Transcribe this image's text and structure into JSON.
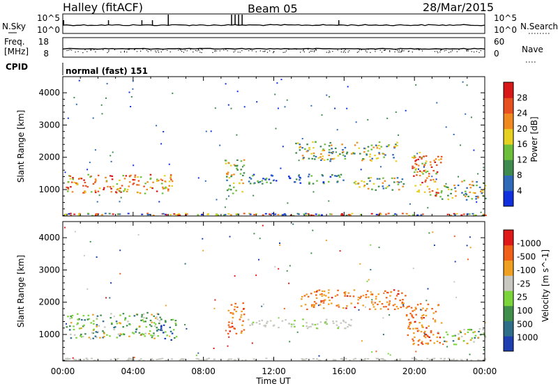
{
  "header": {
    "station": "Halley (fitACF)",
    "beam": "Beam 05",
    "date": "28/Mar/2015"
  },
  "status_panels": {
    "noise": {
      "left_label": "N.Sky",
      "right_label": "N.Search",
      "left_ticks": [
        "10^5",
        "10^0"
      ],
      "right_ticks": [
        "10^5",
        "10^0"
      ]
    },
    "freq": {
      "left_label_1": "Freq.",
      "left_label_2": "[MHz]",
      "right_label": "Nave",
      "left_ticks": [
        "18",
        "8"
      ],
      "right_ticks": [
        "60",
        "0"
      ]
    },
    "cpid": {
      "label": "CPID",
      "value": "normal (fast) 151"
    }
  },
  "chart_data": [
    {
      "type": "heatmap",
      "title": "",
      "ylabel": "Slant Range [km]",
      "xlabel": "",
      "x_range_hours": [
        0,
        24
      ],
      "ylim": [
        180,
        4500
      ],
      "y_ticks": [
        "1000",
        "2000",
        "3000",
        "4000"
      ],
      "colorbar": {
        "label": "Power [dB]",
        "ticks": [
          "4",
          "8",
          "12",
          "16",
          "20",
          "24",
          "28"
        ],
        "colors": [
          "#1030e0",
          "#2f6ab8",
          "#3f8a4e",
          "#6cbf3a",
          "#e6d020",
          "#f08a20",
          "#e85020",
          "#d81818"
        ]
      },
      "regions": [
        {
          "t": [
            0.1,
            6.3
          ],
          "r": [
            900,
            1500
          ],
          "level": "high"
        },
        {
          "t": [
            9.2,
            10.3
          ],
          "r": [
            900,
            2000
          ],
          "level": "mid"
        },
        {
          "t": [
            10.5,
            16.0
          ],
          "r": [
            1200,
            1500
          ],
          "level": "low"
        },
        {
          "t": [
            13.2,
            19.0
          ],
          "r": [
            1900,
            2500
          ],
          "level": "mid"
        },
        {
          "t": [
            16.5,
            19.5
          ],
          "r": [
            1000,
            1400
          ],
          "level": "mid"
        },
        {
          "t": [
            19.8,
            21.5
          ],
          "r": [
            800,
            2200
          ],
          "level": "high"
        },
        {
          "t": [
            21.5,
            24.0
          ],
          "r": [
            700,
            1300
          ],
          "level": "mid"
        }
      ]
    },
    {
      "type": "heatmap",
      "title": "",
      "ylabel": "Slant Range [km]",
      "xlabel": "Time UT",
      "x_ticks": [
        "00:00",
        "04:00",
        "08:00",
        "12:00",
        "16:00",
        "20:00",
        "00:00"
      ],
      "ylim": [
        180,
        4500
      ],
      "y_ticks": [
        "1000",
        "2000",
        "3000",
        "4000"
      ],
      "colorbar": {
        "label": "Velocity [m s^-1]",
        "ticks": [
          "1000",
          "500",
          "100",
          "25",
          "-25",
          "-100",
          "-500",
          "-1000"
        ],
        "colors": [
          "#1f3fb0",
          "#2e6e88",
          "#3f8f4a",
          "#7bd43a",
          "#c8c8c0",
          "#f0a020",
          "#f06018",
          "#e01818"
        ]
      },
      "regions": [
        {
          "t": [
            0.1,
            5.5
          ],
          "r": [
            900,
            1700
          ],
          "level": "mixed_pos"
        },
        {
          "t": [
            5.5,
            6.5
          ],
          "r": [
            800,
            1500
          ],
          "level": "positive"
        },
        {
          "t": [
            9.3,
            10.3
          ],
          "r": [
            1000,
            2000
          ],
          "level": "negative"
        },
        {
          "t": [
            10.5,
            16.5
          ],
          "r": [
            1200,
            1500
          ],
          "level": "zero"
        },
        {
          "t": [
            13.5,
            19.5
          ],
          "r": [
            1800,
            2400
          ],
          "level": "negative"
        },
        {
          "t": [
            19.5,
            21.5
          ],
          "r": [
            700,
            2000
          ],
          "level": "negative"
        },
        {
          "t": [
            21.5,
            24.0
          ],
          "r": [
            700,
            1200
          ],
          "level": "mixed_pos"
        }
      ]
    }
  ]
}
